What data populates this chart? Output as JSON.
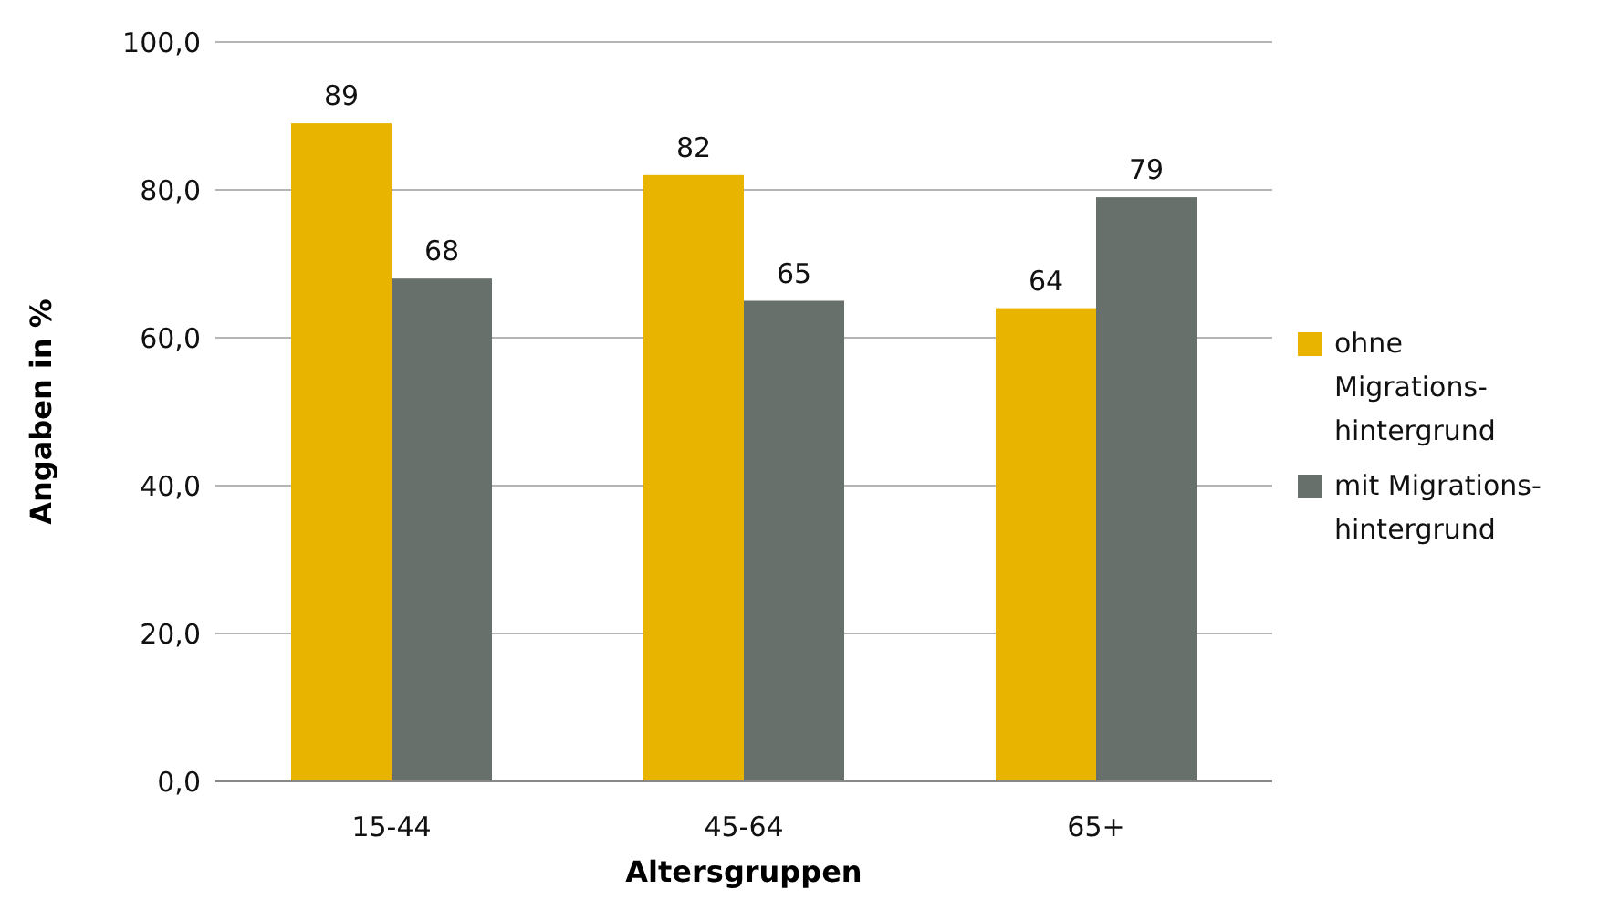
{
  "chart_data": {
    "type": "bar",
    "xlabel": "Altersgruppen",
    "ylabel": "Angaben in %",
    "categories": [
      "15-44",
      "45-64",
      "65+"
    ],
    "series": [
      {
        "name": "ohne Migrations-hintergrund",
        "color": "#e9b400",
        "values": [
          89,
          82,
          64
        ]
      },
      {
        "name": "mit Migrations-hintergrund",
        "color": "#67706a",
        "values": [
          68,
          65,
          79
        ]
      }
    ],
    "ylim": [
      0,
      100
    ],
    "yticks": [
      {
        "value": 0,
        "label": "0,0"
      },
      {
        "value": 20,
        "label": "20,0"
      },
      {
        "value": 40,
        "label": "40,0"
      },
      {
        "value": 60,
        "label": "60,0"
      },
      {
        "value": 80,
        "label": "80,0"
      },
      {
        "value": 100,
        "label": "100,0"
      }
    ],
    "grid": "y",
    "legend": "right",
    "data_labels": true
  }
}
